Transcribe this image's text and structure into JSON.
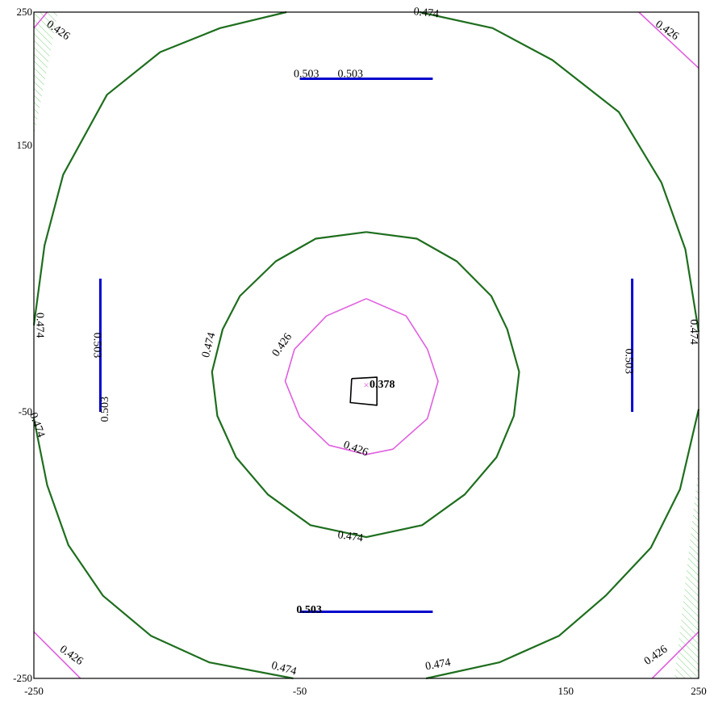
{
  "chart_data": {
    "type": "contour",
    "title": "",
    "xlabel": "",
    "ylabel": "",
    "xlim": [
      -250,
      250
    ],
    "ylim": [
      -250,
      250
    ],
    "x_ticks": [
      "-250",
      "-50",
      "150",
      "250"
    ],
    "y_ticks": [
      "250",
      "150",
      "-50",
      "-250"
    ],
    "grid": false,
    "colors": {
      "level_0378": "#000000",
      "level_0426": "#e060e0",
      "level_0474": "#1e6e1e",
      "level_0503": "#0000cc",
      "hatch": "#8fd68f",
      "axes": "#000000"
    },
    "levels": [
      {
        "value": 0.378,
        "label": "0.378",
        "contours": [
          [
            [
              -11,
              -25
            ],
            [
              8,
              -24
            ],
            [
              8,
              -45
            ],
            [
              -12,
              -43
            ],
            [
              -11,
              -25
            ]
          ]
        ]
      },
      {
        "value": 0.426,
        "label": "0.426",
        "contours": [
          [
            [
              0,
              35
            ],
            [
              30,
              22
            ],
            [
              46,
              -3
            ],
            [
              54,
              -27
            ],
            [
              46,
              -55
            ],
            [
              20,
              -78
            ],
            [
              0,
              -82
            ],
            [
              -28,
              -75
            ],
            [
              -50,
              -54
            ],
            [
              -61,
              -27
            ],
            [
              -54,
              -3
            ],
            [
              -30,
              22
            ],
            [
              0,
              35
            ]
          ],
          [
            [
              -240,
              250
            ],
            [
              -250,
              238
            ]
          ],
          [
            [
              205,
              250
            ],
            [
              250,
              208
            ]
          ],
          [
            [
              -250,
              -215
            ],
            [
              -215,
              -250
            ]
          ],
          [
            [
              215,
              -250
            ],
            [
              250,
              -215
            ]
          ]
        ]
      },
      {
        "value": 0.474,
        "label": "0.474",
        "contours": [
          [
            [
              0,
              85
            ],
            [
              38,
              80
            ],
            [
              68,
              63
            ],
            [
              94,
              37
            ],
            [
              106,
              12
            ],
            [
              115,
              -20
            ],
            [
              111,
              -53
            ],
            [
              98,
              -84
            ],
            [
              74,
              -112
            ],
            [
              42,
              -135
            ],
            [
              0,
              -144
            ],
            [
              -42,
              -135
            ],
            [
              -74,
              -112
            ],
            [
              -98,
              -84
            ],
            [
              -112,
              -53
            ],
            [
              -116,
              -20
            ],
            [
              -108,
              12
            ],
            [
              -95,
              37
            ],
            [
              -68,
              63
            ],
            [
              -38,
              80
            ],
            [
              0,
              85
            ]
          ],
          [
            [
              -60,
              250
            ],
            [
              -110,
              238
            ],
            [
              -155,
              220
            ],
            [
              -195,
              188
            ],
            [
              -228,
              128
            ],
            [
              -242,
              75
            ],
            [
              -250,
              15
            ]
          ],
          [
            [
              40,
              250
            ],
            [
              95,
              238
            ],
            [
              140,
              214
            ],
            [
              190,
              175
            ],
            [
              222,
              122
            ],
            [
              240,
              72
            ],
            [
              250,
              10
            ]
          ],
          [
            [
              -250,
              -55
            ],
            [
              -240,
              -105
            ],
            [
              -224,
              -150
            ],
            [
              -198,
              -188
            ],
            [
              -162,
              -218
            ],
            [
              -118,
              -238
            ],
            [
              -55,
              -250
            ]
          ],
          [
            [
              45,
              -250
            ],
            [
              100,
              -238
            ],
            [
              145,
              -218
            ],
            [
              180,
              -188
            ],
            [
              214,
              -152
            ],
            [
              236,
              -108
            ],
            [
              250,
              -48
            ]
          ]
        ]
      },
      {
        "value": 0.503,
        "label": "0.503",
        "contours": [
          [
            [
              -50,
              200
            ],
            [
              50,
              200
            ]
          ],
          [
            [
              -200,
              50
            ],
            [
              -200,
              -50
            ]
          ],
          [
            [
              200,
              50
            ],
            [
              200,
              -50
            ]
          ],
          [
            [
              -50,
              -200
            ],
            [
              50,
              -200
            ]
          ]
        ]
      }
    ],
    "labels": [
      {
        "level": 0.474,
        "text": "0.474",
        "x": 45,
        "y": 249
      },
      {
        "level": 0.426,
        "text": "0.426",
        "x": -232,
        "y": 236
      },
      {
        "level": 0.426,
        "text": "0.426",
        "x": 226,
        "y": 236
      },
      {
        "level": 0.503,
        "text": "0.503",
        "x": -45,
        "y": 203
      },
      {
        "level": 0.503,
        "text": "0.503",
        "x": -12,
        "y": 203
      },
      {
        "level": 0.474,
        "text": "0.474",
        "x": -246,
        "y": 15
      },
      {
        "level": 0.474,
        "text": "0.474",
        "x": 246,
        "y": 10
      },
      {
        "level": 0.503,
        "text": "0.503",
        "x": -203,
        "y": 0
      },
      {
        "level": 0.503,
        "text": "0.503",
        "x": -196,
        "y": -48
      },
      {
        "level": 0.474,
        "text": "0.474",
        "x": -118,
        "y": 0
      },
      {
        "level": 0.426,
        "text": "0.426",
        "x": -63,
        "y": 0
      },
      {
        "level": 0.378,
        "text": "0.378",
        "x": 12,
        "y": -30
      },
      {
        "level": 0.503,
        "text": "0.503",
        "x": 197,
        "y": -12
      },
      {
        "level": 0.474,
        "text": "0.474",
        "x": -248,
        "y": -60
      },
      {
        "level": 0.426,
        "text": "0.426",
        "x": -8,
        "y": -78
      },
      {
        "level": 0.474,
        "text": "0.474",
        "x": -12,
        "y": -144
      },
      {
        "level": 0.503,
        "text": "0.503",
        "x": -43,
        "y": -199
      },
      {
        "level": 0.426,
        "text": "0.426",
        "x": -222,
        "y": -233
      },
      {
        "level": 0.474,
        "text": "0.474",
        "x": -62,
        "y": -243
      },
      {
        "level": 0.474,
        "text": "0.474",
        "x": 54,
        "y": -240
      },
      {
        "level": 0.426,
        "text": "0.426",
        "x": 218,
        "y": -233
      }
    ],
    "marker": {
      "symbol": "x",
      "x": 0,
      "y": -30,
      "color": "#e060e0"
    }
  }
}
